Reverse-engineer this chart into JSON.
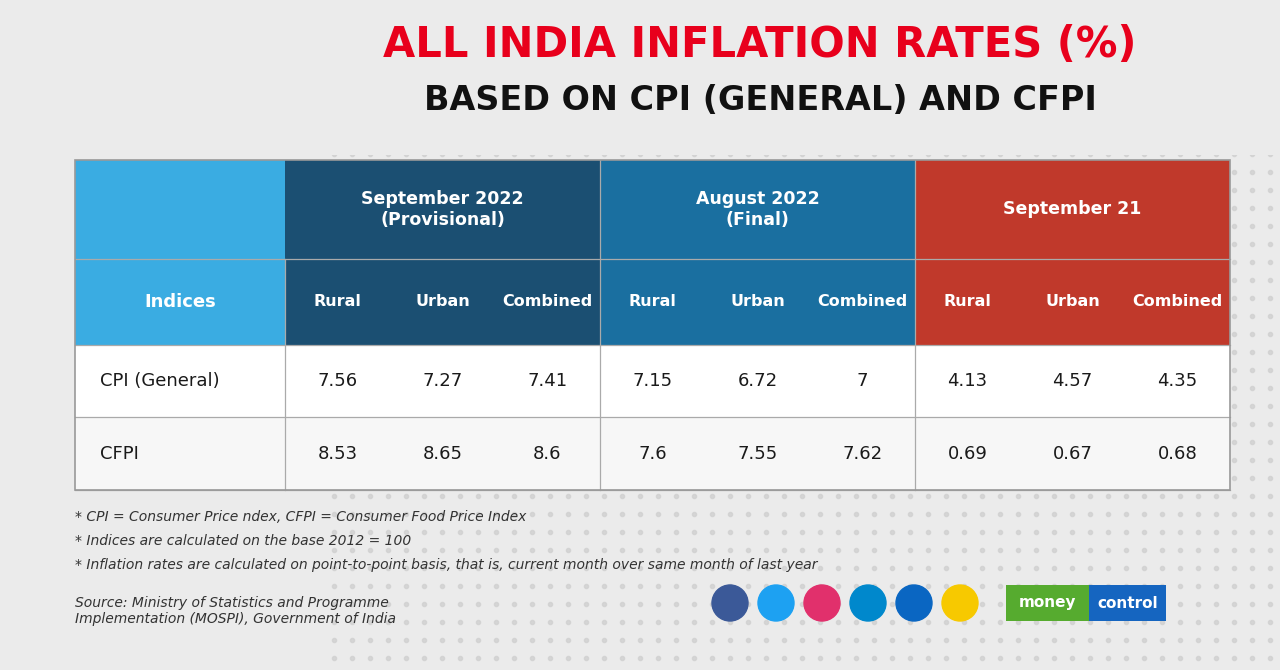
{
  "title_line1": "ALL INDIA INFLATION RATES (%)",
  "title_line2": "BASED ON CPI (GENERAL) AND CFPI",
  "title_line1_color": "#E8001C",
  "title_line2_color": "#111111",
  "col_groups": [
    {
      "label": "September 2022\n(Provisional)",
      "color": "#1B4F72"
    },
    {
      "label": "August 2022\n(Final)",
      "color": "#1A6FA0"
    },
    {
      "label": "September 21",
      "color": "#C0392B"
    }
  ],
  "sub_headers": [
    "Rural",
    "Urban",
    "Combined",
    "Rural",
    "Urban",
    "Combined",
    "Rural",
    "Urban",
    "Combined"
  ],
  "sub_header_colors": [
    "#1B4F72",
    "#1B4F72",
    "#1B4F72",
    "#1A6FA0",
    "#1A6FA0",
    "#1A6FA0",
    "#C0392B",
    "#C0392B",
    "#C0392B"
  ],
  "indices_header_color": "#2E86C1",
  "rows": [
    {
      "label": "CPI (General)",
      "values": [
        "7.56",
        "7.27",
        "7.41",
        "7.15",
        "6.72",
        "7",
        "4.13",
        "4.57",
        "4.35"
      ]
    },
    {
      "label": "CFPI",
      "values": [
        "8.53",
        "8.65",
        "8.6",
        "7.6",
        "7.55",
        "7.62",
        "0.69",
        "0.67",
        "0.68"
      ]
    }
  ],
  "footnotes": [
    "* CPI = Consumer Price ndex, CFPI = Consumer Food Price Index",
    "* Indices are calculated on the base 2012 = 100",
    "* Inflation rates are calculated on point-to-point basis, that is, current month over same month of last year"
  ],
  "source_text": "Source: Ministry of Statistics and Programme\nImplementation (MOSPI), Government of India",
  "bg_color": "#ebebeb",
  "dot_color": "#d0d0d0",
  "table_bg": "#ffffff",
  "indices_cell_color": "#3AACE2",
  "icon_colors": [
    "#3b5998",
    "#1da1f2",
    "#e1306c",
    "#0088cc",
    "#0a66c2",
    "#f7c900"
  ],
  "mc_green": "#56ab2f",
  "mc_blue": "#1565c0"
}
